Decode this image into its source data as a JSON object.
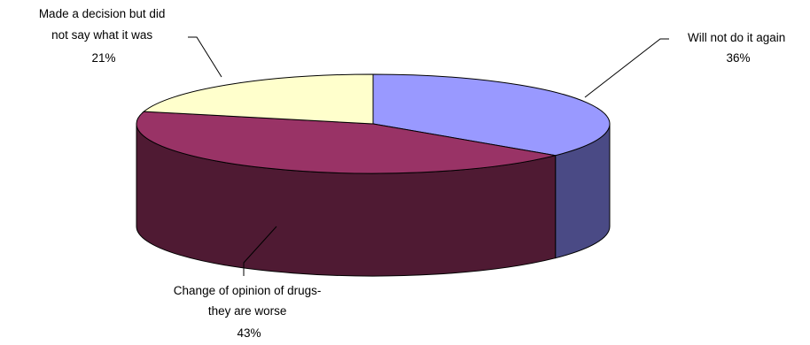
{
  "chart_data": {
    "type": "pie",
    "style": "3d",
    "title": "",
    "slices": [
      {
        "label_lines": [
          "Will not do it again"
        ],
        "pct_label": "36%",
        "value": 36,
        "color": "#9999ff",
        "side_color": "#4a4a85"
      },
      {
        "label_lines": [
          "Change of opinion of drugs-",
          "they are worse"
        ],
        "pct_label": "43%",
        "value": 43,
        "color": "#993366",
        "side_color": "#4f1a33"
      },
      {
        "label_lines": [
          "Made a decision but did",
          "not say what it was"
        ],
        "pct_label": "21%",
        "value": 21,
        "color": "#ffffcc",
        "side_color": "#b3b38f"
      }
    ]
  }
}
